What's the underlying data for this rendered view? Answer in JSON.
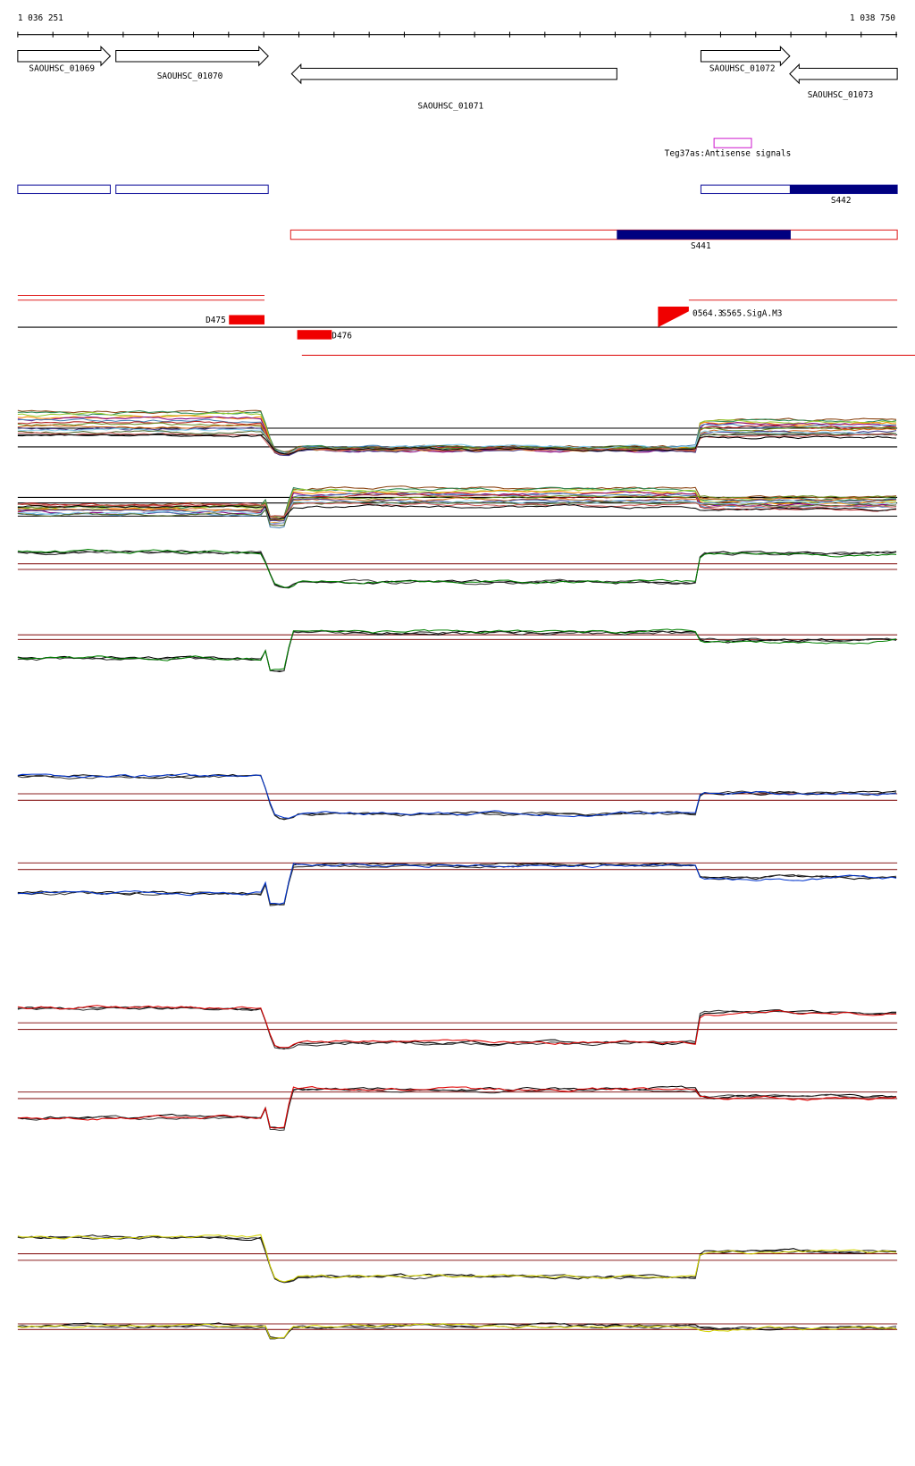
{
  "ruler": {
    "start": "1 036 251",
    "end": "1 038 750"
  },
  "genes": [
    {
      "label": "SAOUHSC_01069"
    },
    {
      "label": "SAOUHSC_01070"
    },
    {
      "label": "SAOUHSC_01071"
    },
    {
      "label": "SAOUHSC_01072"
    },
    {
      "label": "SAOUHSC_01073"
    }
  ],
  "antisense": {
    "label": "Teg37as:Antisense signals"
  },
  "segments": [
    {
      "label": "S442"
    },
    {
      "label": "S441"
    }
  ],
  "features": [
    {
      "label": "D475"
    },
    {
      "label": "D476"
    },
    {
      "label": "0564.3"
    },
    {
      "label": "S565.SigA.M3"
    }
  ]
}
